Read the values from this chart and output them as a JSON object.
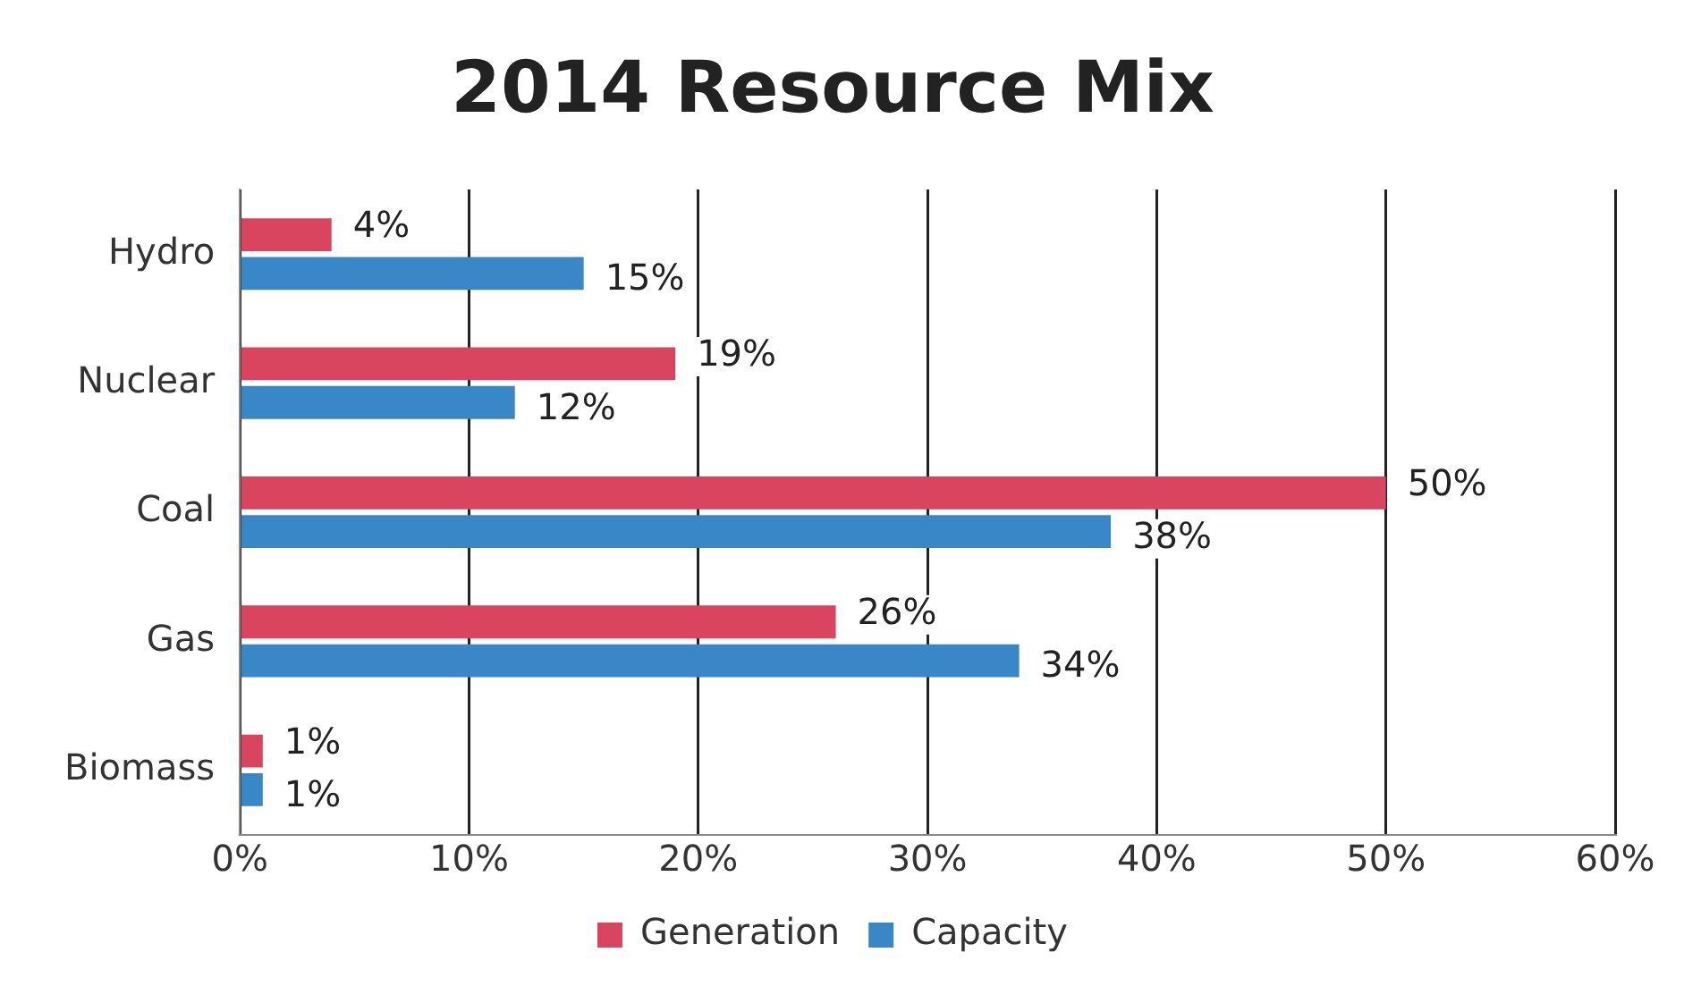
{
  "chart_data": {
    "type": "bar",
    "orientation": "horizontal",
    "title": "2014 Resource Mix",
    "categories": [
      "Hydro",
      "Nuclear",
      "Coal",
      "Gas",
      "Biomass"
    ],
    "series": [
      {
        "name": "Generation",
        "color": "#d9455f",
        "values": [
          4,
          19,
          50,
          26,
          1
        ],
        "value_labels": [
          "4%",
          "19%",
          "50%",
          "26%",
          "1%"
        ]
      },
      {
        "name": "Capacity",
        "color": "#3a87c8",
        "values": [
          15,
          12,
          38,
          34,
          1
        ],
        "value_labels": [
          "15%",
          "12%",
          "38%",
          "34%",
          "1%"
        ]
      }
    ],
    "xlim": [
      0,
      60
    ],
    "xticks": [
      {
        "value": 0,
        "label": "0%"
      },
      {
        "value": 10,
        "label": "10%"
      },
      {
        "value": 20,
        "label": "20%"
      },
      {
        "value": 30,
        "label": "30%"
      },
      {
        "value": 40,
        "label": "40%"
      },
      {
        "value": 50,
        "label": "50%"
      },
      {
        "value": 60,
        "label": "60%"
      }
    ],
    "grid": "x",
    "legend": "bottom"
  }
}
